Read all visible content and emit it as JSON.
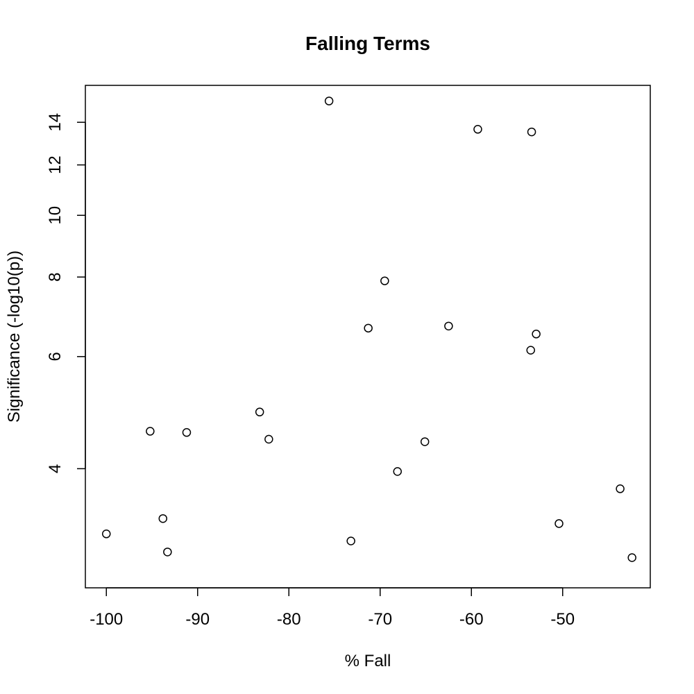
{
  "chart_data": {
    "type": "scatter",
    "title": "Falling Terms",
    "xlabel": "% Fall",
    "ylabel": "Significance (-log10(p))",
    "xlim": [
      -102.3,
      -40.4
    ],
    "ylim": [
      2.6,
      16.0
    ],
    "y_scale": "log",
    "grid": false,
    "legend": "none",
    "x_ticks": [
      -100,
      -90,
      -80,
      -70,
      -60,
      -50
    ],
    "x_tick_labels": [
      "-100",
      "-90",
      "-80",
      "-70",
      "-60",
      "-50"
    ],
    "y_ticks": [
      4,
      6,
      8,
      10,
      12,
      14
    ],
    "y_tick_labels": [
      "4",
      "6",
      "8",
      "10",
      "12",
      "14"
    ],
    "points": [
      {
        "x": -100.0,
        "y": 3.16
      },
      {
        "x": -95.2,
        "y": 4.58
      },
      {
        "x": -93.8,
        "y": 3.34
      },
      {
        "x": -93.3,
        "y": 2.96
      },
      {
        "x": -91.2,
        "y": 4.56
      },
      {
        "x": -83.2,
        "y": 4.91
      },
      {
        "x": -82.2,
        "y": 4.45
      },
      {
        "x": -75.6,
        "y": 15.12
      },
      {
        "x": -73.2,
        "y": 3.08
      },
      {
        "x": -71.3,
        "y": 6.65
      },
      {
        "x": -69.5,
        "y": 7.89
      },
      {
        "x": -68.1,
        "y": 3.96
      },
      {
        "x": -65.1,
        "y": 4.41
      },
      {
        "x": -62.5,
        "y": 6.7
      },
      {
        "x": -59.3,
        "y": 13.65
      },
      {
        "x": -53.5,
        "y": 6.14
      },
      {
        "x": -53.4,
        "y": 13.52
      },
      {
        "x": -52.9,
        "y": 6.51
      },
      {
        "x": -50.4,
        "y": 3.28
      },
      {
        "x": -43.7,
        "y": 3.72
      },
      {
        "x": -42.4,
        "y": 2.9
      }
    ]
  }
}
